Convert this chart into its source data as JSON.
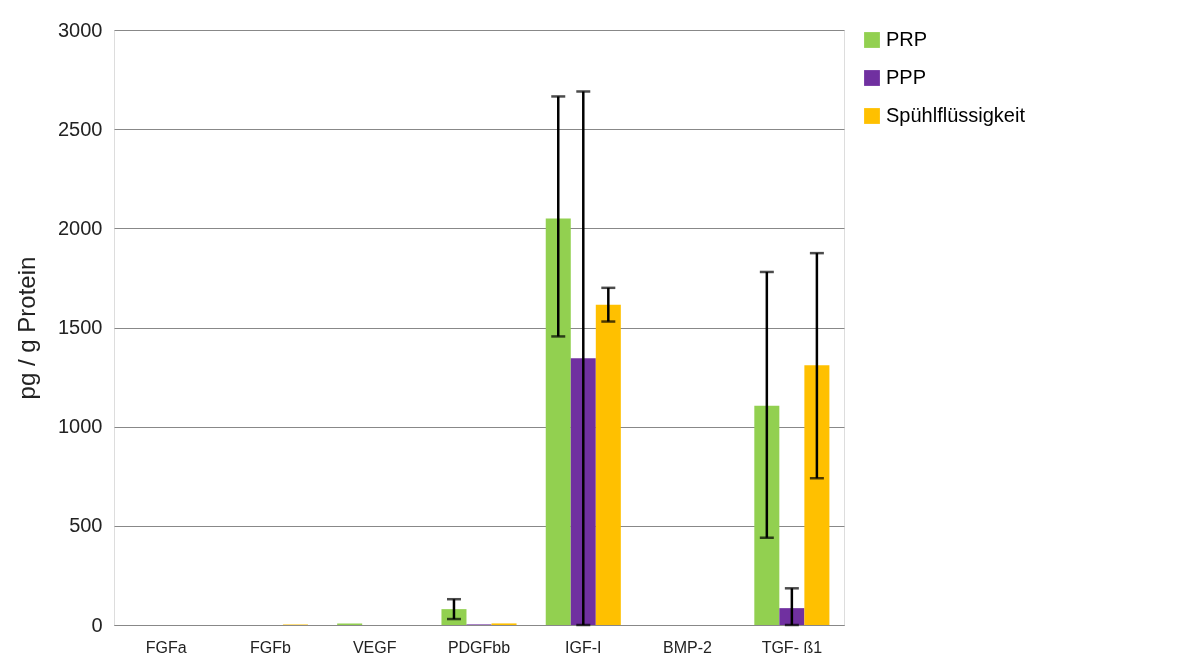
{
  "chart_data": {
    "type": "bar",
    "ylabel": "pg / g Protein",
    "categories": [
      "FGFa",
      "FGFb",
      "VEGF",
      "PDGFbb",
      "IGF-I",
      "BMP-2",
      "TGF- ß1"
    ],
    "series": [
      {
        "name": "PRP",
        "color": "#92d050",
        "values": [
          0,
          0,
          8,
          80,
          2050,
          0,
          1105
        ],
        "errors": [
          null,
          null,
          null,
          [
            30,
            130
          ],
          [
            1455,
            2665
          ],
          null,
          [
            440,
            1780
          ]
        ]
      },
      {
        "name": "PPP",
        "color": "#7030a0",
        "values": [
          0,
          0,
          0,
          3,
          1345,
          0,
          85
        ],
        "errors": [
          null,
          null,
          null,
          null,
          [
            0,
            2690
          ],
          null,
          [
            0,
            185
          ]
        ]
      },
      {
        "name": "Spühlflüssigkeit",
        "color": "#ffc000",
        "values": [
          null,
          3,
          null,
          8,
          1615,
          0,
          1310
        ],
        "errors": [
          null,
          null,
          null,
          null,
          [
            1530,
            1700
          ],
          null,
          [
            740,
            1875
          ]
        ]
      }
    ],
    "ylim": [
      0,
      3000
    ],
    "yticks": [
      0,
      500,
      1000,
      1500,
      2000,
      2500,
      3000
    ],
    "grid": "y",
    "legend": "right"
  }
}
